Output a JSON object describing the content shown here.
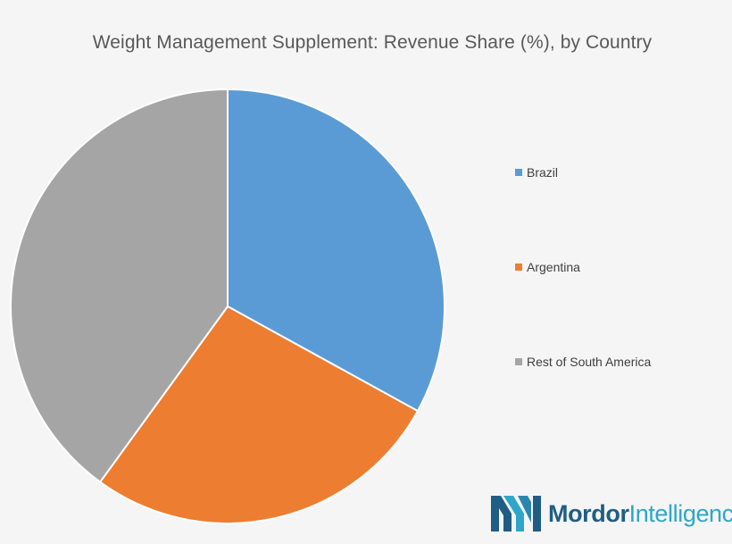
{
  "chart_data": {
    "type": "pie",
    "title": "Weight Management Supplement: Revenue Share (%), by Country",
    "categories": [
      "Brazil",
      "Argentina",
      "Rest of South America"
    ],
    "values": [
      33,
      27,
      40
    ],
    "start_angle_deg": 0,
    "direction": "clockwise",
    "colors": [
      "#5b9bd5",
      "#ed7d31",
      "#a5a5a5"
    ],
    "data_labels": false,
    "legend_position": "right"
  },
  "branding": {
    "logo_word1": "Mordor",
    "logo_word2": "Intelligence",
    "logo_colors": [
      "#1f5d85",
      "#2ea6c9"
    ]
  }
}
